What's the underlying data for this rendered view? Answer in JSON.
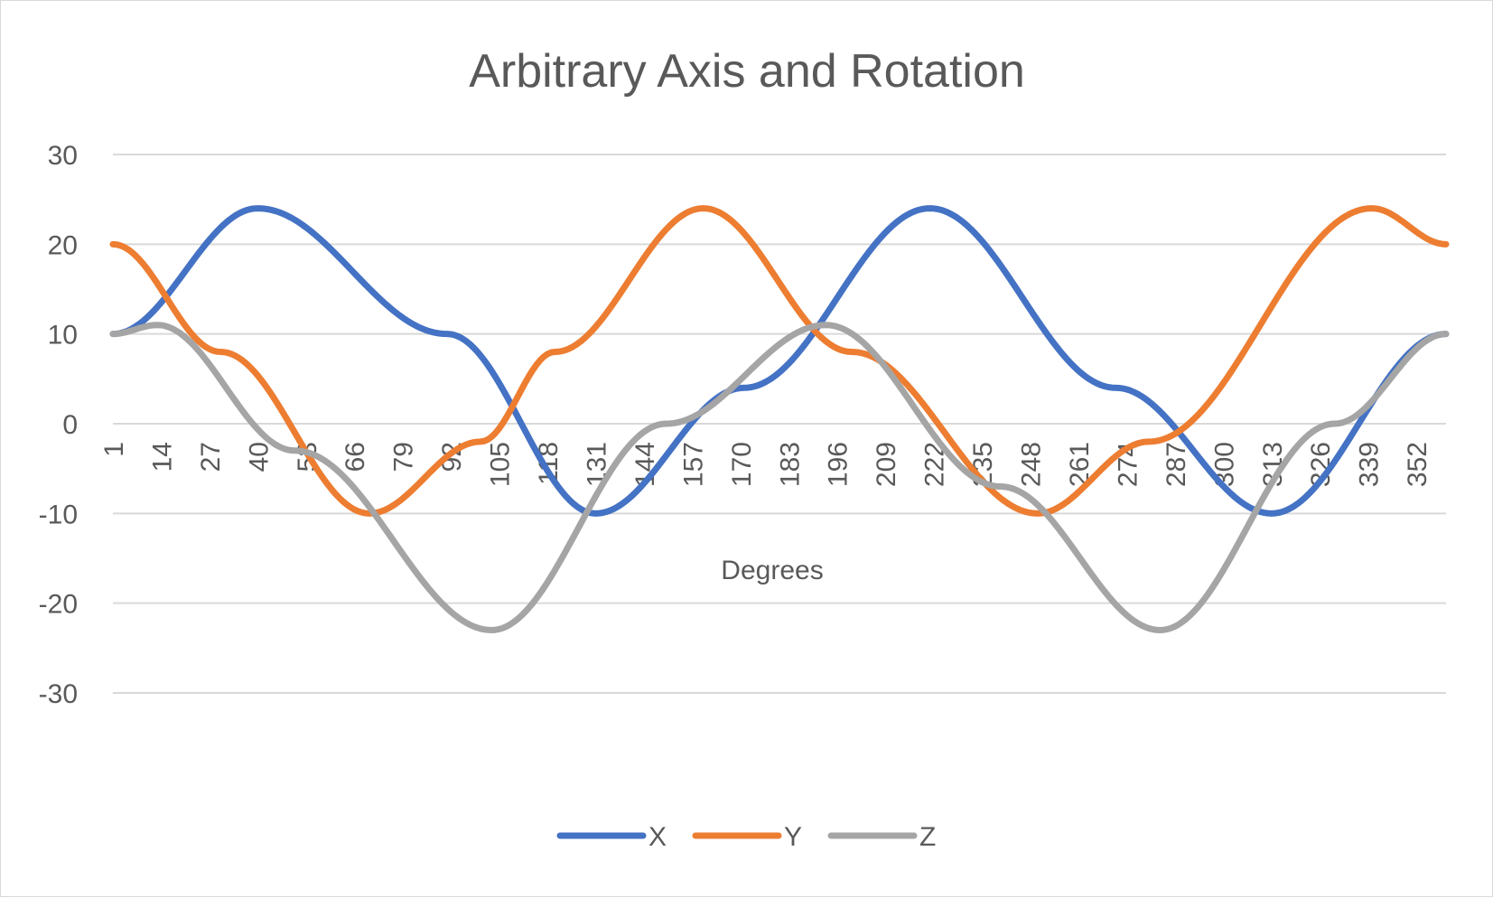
{
  "chart_data": {
    "type": "line",
    "title": "Arbitrary Axis and Rotation",
    "xlabel": "Degrees",
    "ylabel": "",
    "ylim": [
      -30,
      30
    ],
    "y_ticks": [
      30,
      20,
      10,
      0,
      -10,
      -20,
      -30
    ],
    "x_range": [
      1,
      360
    ],
    "x_step": 1,
    "x_tick_labels": [
      "1",
      "14",
      "27",
      "40",
      "53",
      "66",
      "79",
      "92",
      "105",
      "118",
      "131",
      "144",
      "157",
      "170",
      "183",
      "196",
      "209",
      "222",
      "235",
      "248",
      "261",
      "274",
      "287",
      "300",
      "313",
      "326",
      "339",
      "352"
    ],
    "grid": true,
    "legend_position": "bottom",
    "series": [
      {
        "name": "X",
        "color": "#4472c4",
        "shape": "sinusoid, period 180 degrees",
        "x": [
          1,
          40,
          91,
          131,
          171,
          221,
          271,
          313,
          360
        ],
        "values": [
          10,
          24,
          10,
          -10,
          4,
          24,
          4,
          -10,
          10
        ]
      },
      {
        "name": "Y",
        "color": "#ed7d31",
        "shape": "sinusoid, period 180 degrees",
        "x": [
          1,
          30,
          70,
          100,
          120,
          160,
          200,
          250,
          280,
          340,
          360
        ],
        "values": [
          20,
          8,
          -10,
          -2,
          8,
          24,
          8,
          -10,
          -2,
          24,
          20
        ]
      },
      {
        "name": "Z",
        "color": "#a5a5a5",
        "shape": "sinusoid, period 180 degrees",
        "x": [
          1,
          13,
          50,
          103,
          150,
          193,
          240,
          283,
          330,
          360
        ],
        "values": [
          10,
          11,
          -3,
          -23,
          0,
          11,
          -7,
          -23,
          0,
          10
        ]
      }
    ]
  }
}
